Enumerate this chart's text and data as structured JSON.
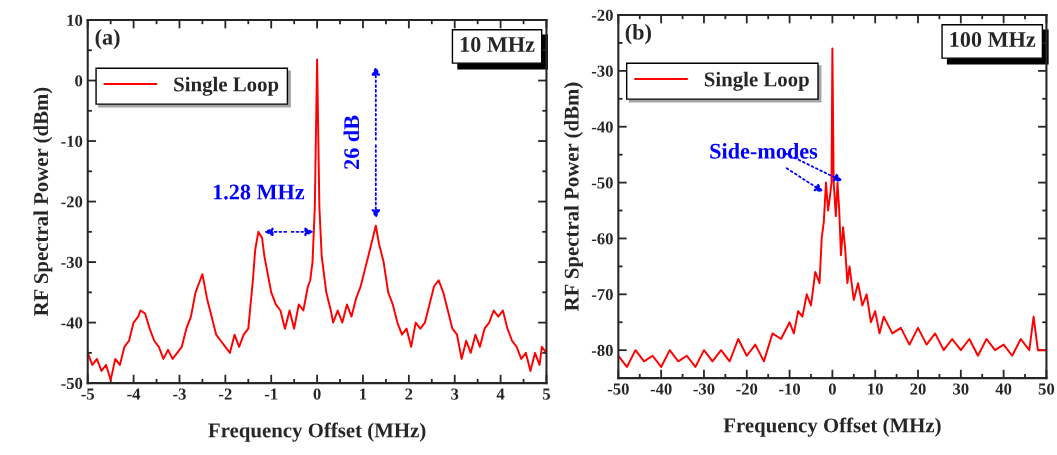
{
  "chart_data": [
    {
      "type": "line",
      "xlabel": "Frequency Offset (MHz)",
      "ylabel": "RF Spectral Power (dBm)",
      "xlim": [
        -5,
        5
      ],
      "ylim": [
        -50,
        10
      ],
      "xticks": [
        -5,
        -4,
        -3,
        -2,
        -1,
        0,
        1,
        2,
        3,
        4,
        5
      ],
      "yticks": [
        -50,
        -40,
        -30,
        -20,
        -10,
        0,
        10
      ],
      "legend": "top left",
      "grid": false,
      "annotations": [
        "(a)",
        "10 MHz",
        {
          "text": "1.28 MHz",
          "x": -1.28,
          "y": -25
        },
        {
          "text": "26 dB",
          "x": 1.28,
          "y": -24
        }
      ],
      "series": [
        {
          "name": "Single Loop",
          "color": "#ff0000",
          "x": [
            -5.0,
            -4.9,
            -4.8,
            -4.7,
            -4.6,
            -4.5,
            -4.4,
            -4.3,
            -4.2,
            -4.1,
            -4.0,
            -3.9,
            -3.85,
            -3.75,
            -3.65,
            -3.55,
            -3.45,
            -3.35,
            -3.25,
            -3.15,
            -3.05,
            -2.95,
            -2.85,
            -2.75,
            -2.65,
            -2.55,
            -2.5,
            -2.4,
            -2.3,
            -2.2,
            -2.1,
            -2.0,
            -1.9,
            -1.8,
            -1.7,
            -1.6,
            -1.5,
            -1.45,
            -1.4,
            -1.35,
            -1.28,
            -1.2,
            -1.15,
            -1.1,
            -1.0,
            -0.9,
            -0.8,
            -0.7,
            -0.6,
            -0.5,
            -0.4,
            -0.3,
            -0.2,
            -0.15,
            -0.1,
            -0.05,
            0.0,
            0.05,
            0.1,
            0.2,
            0.3,
            0.35,
            0.45,
            0.55,
            0.65,
            0.75,
            0.85,
            0.95,
            1.05,
            1.15,
            1.28,
            1.35,
            1.45,
            1.55,
            1.65,
            1.75,
            1.85,
            1.95,
            2.05,
            2.15,
            2.25,
            2.35,
            2.45,
            2.55,
            2.65,
            2.75,
            2.85,
            2.95,
            3.05,
            3.15,
            3.25,
            3.35,
            3.45,
            3.55,
            3.65,
            3.75,
            3.85,
            3.95,
            4.05,
            4.15,
            4.25,
            4.35,
            4.45,
            4.55,
            4.65,
            4.75,
            4.85,
            4.9,
            5.0
          ],
          "values": [
            -45,
            -47,
            -46,
            -48,
            -47,
            -49.5,
            -46,
            -47,
            -44,
            -43,
            -40,
            -39,
            -38,
            -38.5,
            -41,
            -43,
            -44,
            -46,
            -44.5,
            -46,
            -45,
            -44,
            -41,
            -39,
            -35,
            -33,
            -32,
            -36,
            -39,
            -42,
            -43,
            -44,
            -45,
            -42,
            -44,
            -42,
            -41,
            -37,
            -33,
            -28,
            -25,
            -26,
            -29,
            -31,
            -35,
            -37,
            -38,
            -41,
            -38,
            -41,
            -37,
            -38,
            -34,
            -33,
            -30,
            -21,
            3.5,
            -21,
            -29,
            -35,
            -38,
            -40,
            -38,
            -40,
            -37,
            -39,
            -36,
            -34,
            -31,
            -28,
            -24,
            -27,
            -30,
            -35,
            -37,
            -40,
            -42,
            -41,
            -44,
            -40,
            -41,
            -40,
            -37,
            -34,
            -33,
            -35,
            -38,
            -41,
            -42,
            -46,
            -43,
            -45,
            -42,
            -44,
            -41,
            -40,
            -38,
            -39,
            -38,
            -41,
            -43,
            -44,
            -46,
            -45,
            -48,
            -45,
            -47,
            -44,
            -45
          ]
        }
      ]
    },
    {
      "type": "line",
      "xlabel": "Frequency Offset (MHz)",
      "ylabel": "RF Spectral Power (dBm)",
      "xlim": [
        -50,
        50
      ],
      "ylim": [
        -85,
        -20
      ],
      "xticks": [
        -50,
        -40,
        -30,
        -20,
        -10,
        0,
        10,
        20,
        30,
        40,
        50
      ],
      "yticks": [
        -80,
        -70,
        -60,
        -50,
        -40,
        -30,
        -20
      ],
      "legend": "top left",
      "grid": false,
      "annotations": [
        "(b)",
        "100 MHz",
        {
          "text": "Side-modes",
          "x": -1.5,
          "y": -52
        }
      ],
      "series": [
        {
          "name": "Single Loop",
          "color": "#ff0000",
          "x": [
            -50,
            -48,
            -46,
            -44,
            -42,
            -40,
            -38,
            -36,
            -34,
            -32,
            -30,
            -28,
            -26,
            -24,
            -22,
            -20,
            -18,
            -16,
            -14,
            -12,
            -10,
            -9,
            -8,
            -7,
            -6,
            -5,
            -4,
            -3,
            -2.5,
            -2,
            -1.5,
            -1,
            -0.5,
            -0.2,
            0,
            0.3,
            0.8,
            1.2,
            1.6,
            2,
            2.5,
            3,
            3.5,
            4,
            5,
            6,
            7,
            8,
            9,
            10,
            11,
            12,
            14,
            16,
            18,
            20,
            22,
            24,
            26,
            28,
            30,
            32,
            34,
            36,
            38,
            40,
            42,
            44,
            46,
            47,
            48,
            50
          ],
          "values": [
            -81,
            -83,
            -80,
            -82,
            -81,
            -83,
            -80,
            -82,
            -81,
            -83,
            -80,
            -82,
            -80,
            -82,
            -78,
            -81,
            -79,
            -82,
            -77,
            -78,
            -75,
            -77,
            -73,
            -74,
            -70,
            -72,
            -66,
            -68,
            -60,
            -57,
            -50,
            -55,
            -52,
            -50,
            -26,
            -50,
            -56,
            -50,
            -55,
            -63,
            -58,
            -62,
            -68,
            -65,
            -71,
            -68,
            -72,
            -70,
            -75,
            -73,
            -77,
            -74,
            -77,
            -76,
            -79,
            -76,
            -79,
            -77,
            -80,
            -78,
            -80,
            -78,
            -81,
            -78,
            -80,
            -79,
            -81,
            -78,
            -80,
            -74,
            -80,
            -80
          ]
        }
      ]
    }
  ]
}
